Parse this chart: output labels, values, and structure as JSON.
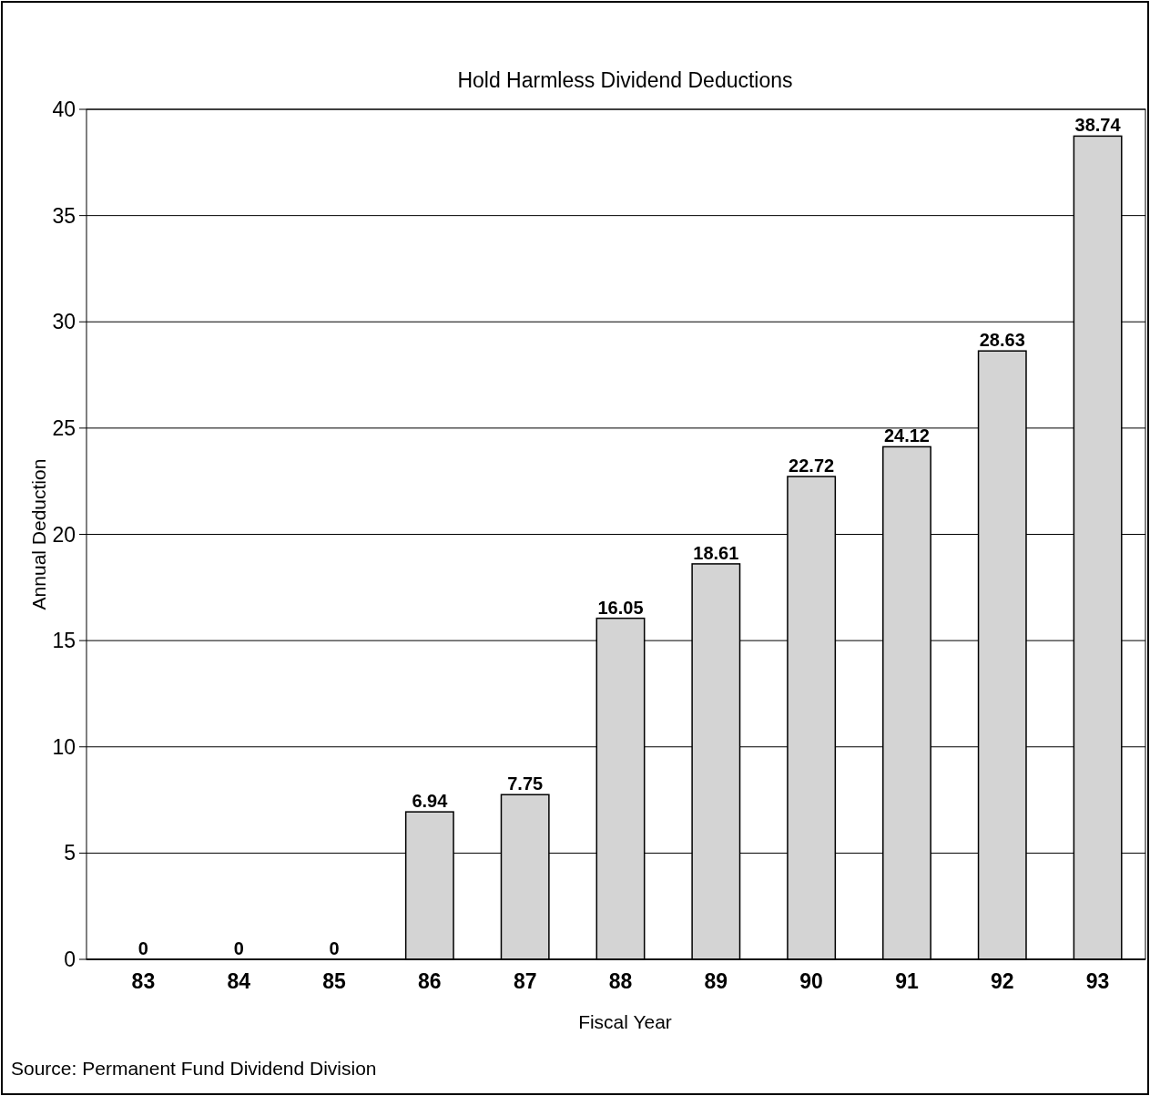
{
  "chart_data": {
    "type": "bar",
    "title": "Hold Harmless Dividend Deductions",
    "xlabel": "Fiscal Year",
    "ylabel": "Annual Deduction",
    "categories": [
      "83",
      "84",
      "85",
      "86",
      "87",
      "88",
      "89",
      "90",
      "91",
      "92",
      "93"
    ],
    "values": [
      0,
      0,
      0,
      6.94,
      7.75,
      16.05,
      18.61,
      22.72,
      24.12,
      28.63,
      38.74
    ],
    "color": "#d4d4d4",
    "ylim": [
      0,
      40
    ],
    "yticks": [
      0,
      5,
      10,
      15,
      20,
      25,
      30,
      35,
      40
    ],
    "grid": "y",
    "data_labels": true,
    "annotations": [
      "Source:  Permanent Fund Dividend Division"
    ]
  }
}
